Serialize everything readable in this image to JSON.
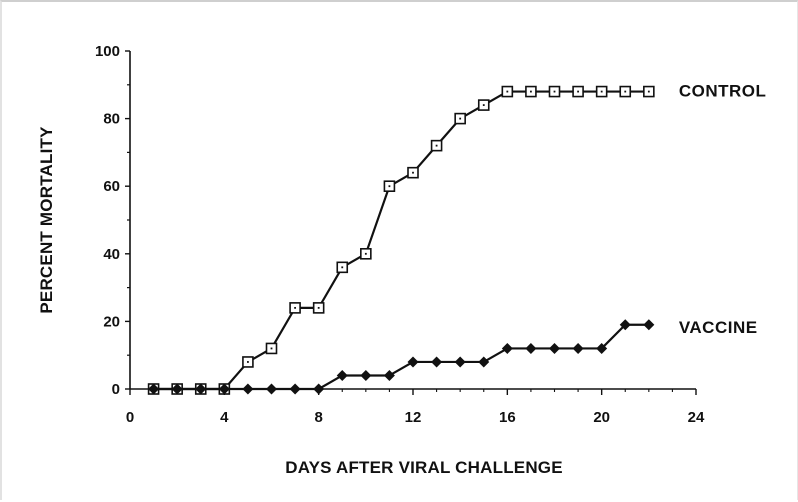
{
  "chart_data": {
    "type": "line",
    "title": "",
    "xlabel": "DAYS AFTER VIRAL CHALLENGE",
    "ylabel": "PERCENT MORTALITY",
    "xlim": [
      0,
      24
    ],
    "ylim": [
      0,
      100
    ],
    "xticks": [
      0,
      4,
      8,
      12,
      16,
      20,
      24
    ],
    "yticks": [
      0,
      20,
      40,
      60,
      80,
      100
    ],
    "grid": false,
    "series": [
      {
        "name": "CONTROL",
        "marker": "open-square",
        "color": "#111111",
        "x": [
          1,
          2,
          3,
          4,
          5,
          6,
          7,
          8,
          9,
          10,
          11,
          12,
          13,
          14,
          15,
          16,
          17,
          18,
          19,
          20,
          21,
          22
        ],
        "y": [
          0,
          0,
          0,
          0,
          8,
          12,
          24,
          24,
          36,
          40,
          60,
          64,
          72,
          80,
          84,
          88,
          88,
          88,
          88,
          88,
          88,
          88
        ]
      },
      {
        "name": "VACCINE",
        "marker": "filled-diamond",
        "color": "#111111",
        "x": [
          1,
          2,
          3,
          4,
          5,
          6,
          7,
          8,
          9,
          10,
          11,
          12,
          13,
          14,
          15,
          16,
          17,
          18,
          19,
          20,
          21,
          22
        ],
        "y": [
          0,
          0,
          0,
          0,
          0,
          0,
          0,
          0,
          4,
          4,
          4,
          8,
          8,
          8,
          8,
          12,
          12,
          12,
          12,
          12,
          19,
          19
        ]
      }
    ]
  }
}
